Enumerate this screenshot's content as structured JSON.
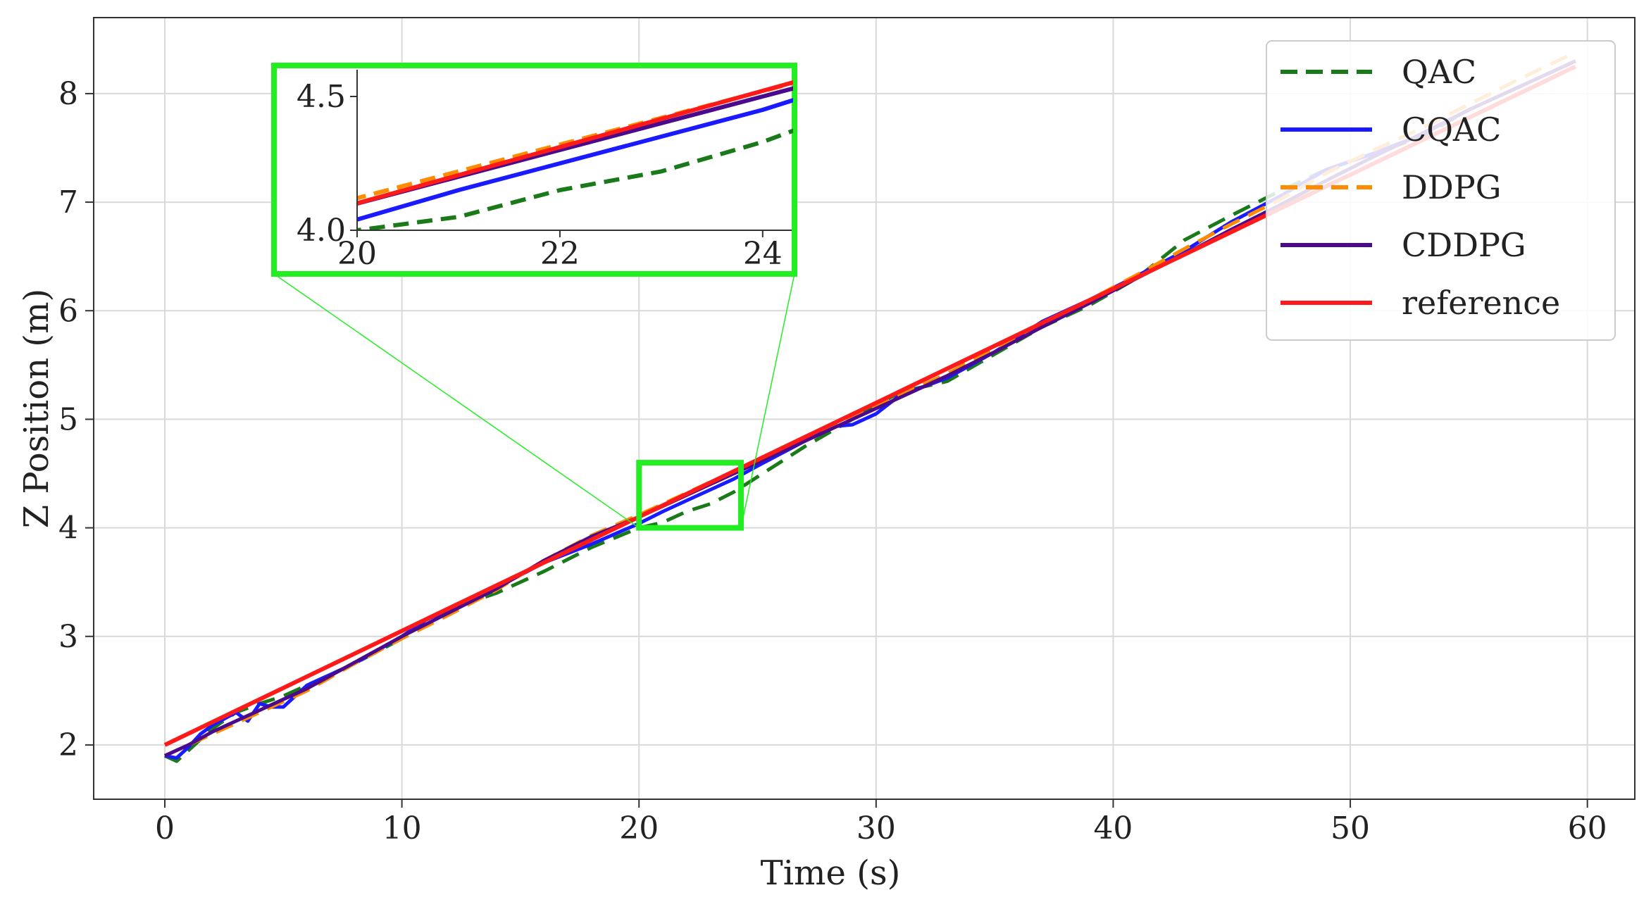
{
  "chart_data": {
    "type": "line",
    "xlabel": "Time (s)",
    "ylabel": "Z Position (m)",
    "xlim": [
      -3,
      62
    ],
    "ylim": [
      1.5,
      8.7
    ],
    "xticks": [
      0,
      10,
      20,
      30,
      40,
      50,
      60
    ],
    "yticks": [
      2,
      3,
      4,
      5,
      6,
      7,
      8
    ],
    "grid": true,
    "legend_position": "top-right",
    "series": [
      {
        "name": "QAC",
        "color": "#1a7a1a",
        "style": "dashed",
        "x": [
          0,
          0.5,
          1,
          1.5,
          2,
          3,
          4,
          5,
          6,
          8,
          10,
          11,
          12,
          14,
          16,
          18,
          20,
          21,
          22,
          23,
          24,
          25,
          27,
          29,
          31,
          33,
          35,
          37,
          39,
          41,
          43,
          45,
          47,
          49,
          51,
          53,
          55,
          57,
          59.5
        ],
        "y": [
          1.9,
          1.85,
          1.95,
          2.05,
          2.15,
          2.3,
          2.38,
          2.45,
          2.55,
          2.75,
          2.98,
          3.15,
          3.25,
          3.4,
          3.6,
          3.82,
          4.0,
          4.05,
          4.15,
          4.22,
          4.33,
          4.47,
          4.75,
          5.0,
          5.25,
          5.35,
          5.6,
          5.85,
          6.05,
          6.3,
          6.65,
          6.88,
          7.1,
          7.3,
          7.45,
          7.6,
          7.85,
          8.05,
          8.3
        ]
      },
      {
        "name": "CQAC",
        "color": "#1a1aff",
        "style": "solid",
        "x": [
          0,
          0.5,
          1,
          1.5,
          2,
          3,
          3.5,
          4,
          4.5,
          5,
          5.5,
          6,
          8,
          10,
          11,
          12,
          14,
          16,
          18,
          20,
          21,
          22,
          23,
          24,
          25,
          27,
          28,
          29,
          30,
          31,
          33,
          35,
          37,
          39,
          41,
          43,
          45,
          47,
          49,
          51,
          53,
          55,
          57,
          59.5
        ],
        "y": [
          1.9,
          1.88,
          1.98,
          2.1,
          2.18,
          2.3,
          2.22,
          2.38,
          2.35,
          2.35,
          2.45,
          2.55,
          2.75,
          3.0,
          3.15,
          3.25,
          3.45,
          3.68,
          3.85,
          4.04,
          4.15,
          4.25,
          4.35,
          4.45,
          4.57,
          4.8,
          4.93,
          4.95,
          5.05,
          5.22,
          5.38,
          5.62,
          5.9,
          6.1,
          6.32,
          6.55,
          6.82,
          7.05,
          7.3,
          7.45,
          7.62,
          7.85,
          8.05,
          8.3
        ]
      },
      {
        "name": "DDPG",
        "color": "#ff8c00",
        "style": "dashed",
        "x": [
          0,
          1,
          2,
          4,
          6,
          8,
          10,
          12,
          14,
          16,
          18,
          20,
          21,
          22,
          23,
          24,
          25,
          27,
          29,
          31,
          33,
          35,
          37,
          39,
          41,
          43,
          45,
          47,
          49,
          51,
          53,
          55,
          57,
          59.5
        ],
        "y": [
          1.9,
          2.0,
          2.1,
          2.3,
          2.5,
          2.75,
          2.98,
          3.2,
          3.43,
          3.7,
          3.93,
          4.12,
          4.22,
          4.32,
          4.42,
          4.52,
          4.62,
          4.82,
          5.02,
          5.22,
          5.42,
          5.65,
          5.88,
          6.1,
          6.33,
          6.57,
          6.8,
          7.02,
          7.27,
          7.48,
          7.68,
          7.9,
          8.12,
          8.38
        ]
      },
      {
        "name": "CDDPG",
        "color": "#4b0a8c",
        "style": "solid",
        "x": [
          0,
          1,
          2,
          4,
          6,
          8,
          10,
          12,
          14,
          16,
          18,
          20,
          21,
          22,
          23,
          24,
          25,
          27,
          29,
          31,
          33,
          35,
          37,
          39,
          41,
          43,
          45,
          47,
          49,
          51,
          53,
          55,
          57,
          59.5
        ],
        "y": [
          1.9,
          2.0,
          2.12,
          2.32,
          2.52,
          2.76,
          3.0,
          3.22,
          3.44,
          3.7,
          3.92,
          4.1,
          4.2,
          4.3,
          4.4,
          4.5,
          4.6,
          4.8,
          5.0,
          5.2,
          5.4,
          5.62,
          5.85,
          6.07,
          6.3,
          6.52,
          6.75,
          6.97,
          7.2,
          7.42,
          7.63,
          7.85,
          8.05,
          8.3
        ]
      },
      {
        "name": "reference",
        "color": "#ff1a1a",
        "style": "solid",
        "x": [
          0,
          59.5
        ],
        "y": [
          2.0,
          8.25
        ]
      }
    ],
    "inset": {
      "xlim": [
        20,
        24.3
      ],
      "ylim": [
        4.0,
        4.6
      ],
      "xticks": [
        20,
        22,
        24
      ],
      "yticks": [
        4.0,
        4.5
      ],
      "ytick_labels": [
        "4.0",
        "4.5"
      ]
    }
  }
}
